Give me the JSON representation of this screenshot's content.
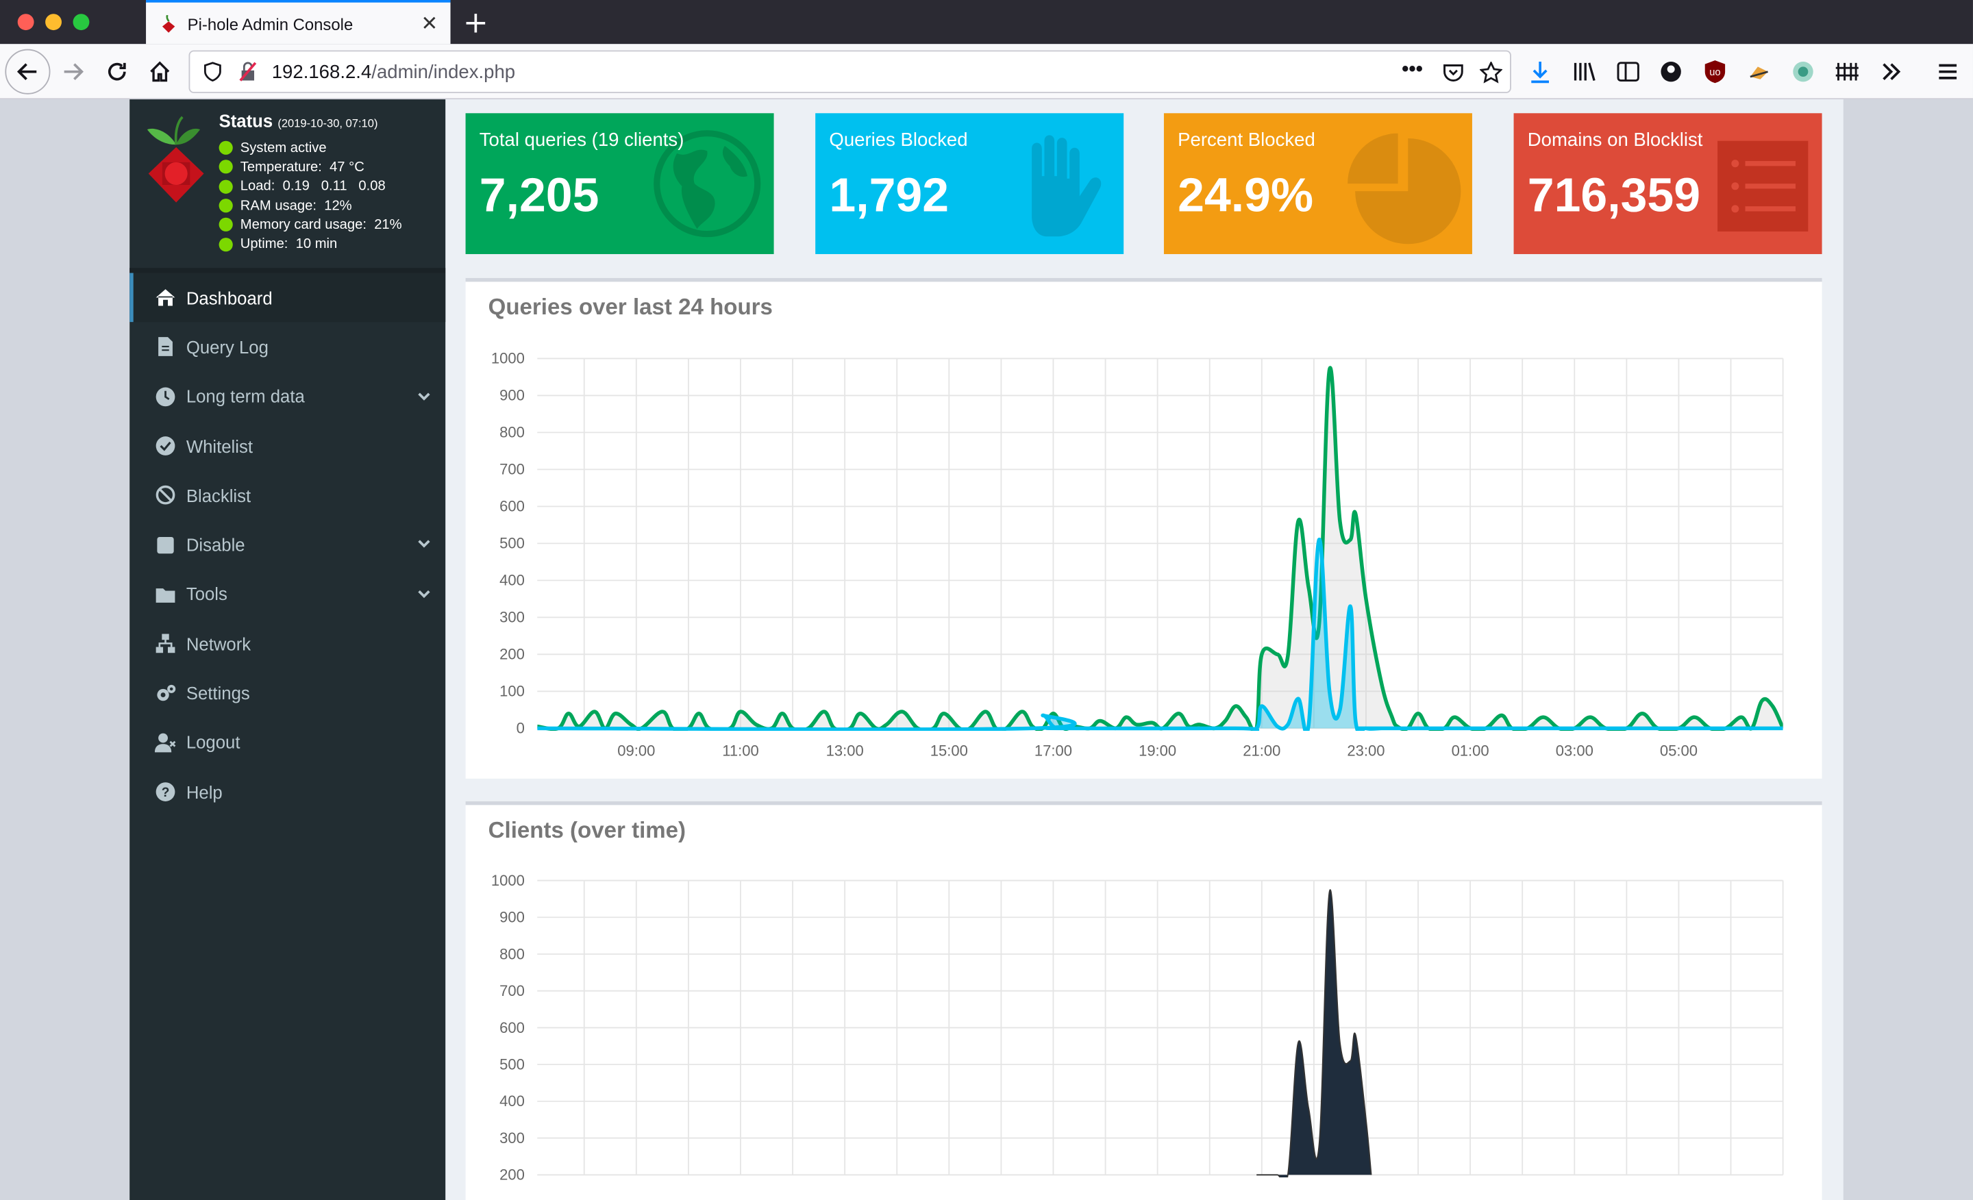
{
  "browser": {
    "tab_title": "Pi-hole Admin Console",
    "url_host": "192.168.2.4",
    "url_path": "/admin/index.php"
  },
  "status": {
    "title": "Status",
    "timestamp": "(2019-10-30, 07:10)",
    "lines": [
      "System active",
      "Temperature:  47 °C",
      "Load:  0.19   0.11   0.08",
      "RAM usage:  12%",
      "Memory card usage:  21%",
      "Uptime:  10 min"
    ]
  },
  "menu": [
    {
      "label": "Dashboard",
      "icon": "home-icon",
      "active": true
    },
    {
      "label": "Query Log",
      "icon": "file-icon"
    },
    {
      "label": "Long term data",
      "icon": "clock-icon",
      "caret": true
    },
    {
      "label": "Whitelist",
      "icon": "check-circle-icon"
    },
    {
      "label": "Blacklist",
      "icon": "ban-icon"
    },
    {
      "label": "Disable",
      "icon": "stop-icon",
      "caret": true
    },
    {
      "label": "Tools",
      "icon": "folder-icon",
      "caret": true
    },
    {
      "label": "Network",
      "icon": "network-icon"
    },
    {
      "label": "Settings",
      "icon": "cogs-icon"
    },
    {
      "label": "Logout",
      "icon": "user-times-icon"
    },
    {
      "label": "Help",
      "icon": "question-circle-icon"
    }
  ],
  "stats": [
    {
      "label": "Total queries (19 clients)",
      "value": "7,205",
      "color": "#00a65a",
      "icon": "globe-icon"
    },
    {
      "label": "Queries Blocked",
      "value": "1,792",
      "color": "#00c0ef",
      "icon": "hand-icon"
    },
    {
      "label": "Percent Blocked",
      "value": "24.9%",
      "color": "#f39c12",
      "icon": "pie-chart-icon"
    },
    {
      "label": "Domains on Blocklist",
      "value": "716,359",
      "color": "#dd4b39",
      "icon": "list-icon"
    }
  ],
  "chart_data": [
    {
      "type": "area",
      "title": "Queries over last 24 hours",
      "ylim": [
        0,
        1000
      ],
      "yticks": [
        0,
        100,
        200,
        300,
        400,
        500,
        600,
        700,
        800,
        900,
        1000
      ],
      "xticks": [
        "09:00",
        "11:00",
        "13:00",
        "15:00",
        "17:00",
        "19:00",
        "21:00",
        "23:00",
        "01:00",
        "03:00",
        "05:00"
      ],
      "x_range": [
        7.1,
        31.0
      ],
      "series": [
        {
          "color": "#00a65a",
          "x": [
            7.1,
            7.5,
            7.7,
            7.9,
            8.2,
            8.4,
            8.6,
            8.9,
            9.1,
            9.5,
            9.7,
            10.0,
            10.2,
            10.4,
            10.8,
            11.0,
            11.3,
            11.6,
            11.8,
            12.0,
            12.3,
            12.6,
            12.8,
            13.1,
            13.3,
            13.6,
            13.8,
            14.1,
            14.4,
            14.7,
            14.9,
            15.2,
            15.4,
            15.7,
            15.9,
            16.1,
            16.4,
            16.6,
            16.8,
            17.0,
            17.2,
            17.4,
            17.7,
            17.9,
            18.2,
            18.4,
            18.6,
            18.9,
            19.1,
            19.4,
            19.6,
            19.8,
            20.1,
            20.3,
            20.5,
            20.7,
            20.9,
            21.0,
            21.3,
            21.5,
            21.7,
            21.9,
            22.1,
            22.3,
            22.5,
            22.7,
            22.8,
            23.0,
            23.3,
            23.5,
            23.6,
            23.8,
            24.0,
            24.2,
            24.5,
            24.7,
            25.0,
            25.3,
            25.6,
            25.8,
            26.1,
            26.4,
            26.7,
            27.0,
            27.3,
            27.6,
            28.0,
            28.3,
            28.6,
            29.0,
            29.3,
            29.6,
            29.9,
            30.2,
            30.4,
            30.6,
            30.8,
            31.0
          ],
          "y": [
            5,
            0,
            40,
            5,
            45,
            0,
            40,
            10,
            0,
            45,
            0,
            0,
            40,
            0,
            0,
            45,
            10,
            0,
            40,
            0,
            0,
            45,
            0,
            0,
            40,
            0,
            10,
            45,
            0,
            0,
            40,
            0,
            0,
            45,
            0,
            0,
            45,
            5,
            0,
            40,
            0,
            5,
            0,
            20,
            0,
            30,
            10,
            15,
            0,
            40,
            5,
            10,
            0,
            20,
            60,
            30,
            0,
            200,
            200,
            195,
            560,
            380,
            280,
            970,
            560,
            510,
            580,
            350,
            120,
            30,
            5,
            0,
            40,
            0,
            0,
            30,
            0,
            0,
            35,
            0,
            0,
            30,
            0,
            0,
            30,
            0,
            0,
            40,
            0,
            0,
            30,
            0,
            0,
            30,
            0,
            75,
            60,
            0
          ]
        },
        {
          "color": "#00c0ef",
          "x": [
            7.1,
            16.6,
            16.8,
            17.0,
            17.2,
            20.5,
            20.9,
            21.0,
            21.3,
            21.5,
            21.7,
            21.9,
            22.1,
            22.3,
            22.5,
            22.7,
            22.8,
            23.0,
            23.3,
            23.5,
            31.0
          ],
          "y": [
            0,
            0,
            35,
            5,
            0,
            0,
            0,
            60,
            5,
            10,
            80,
            10,
            510,
            100,
            50,
            330,
            20,
            0,
            0,
            0,
            0
          ]
        }
      ]
    },
    {
      "type": "area",
      "title": "Clients (over time)",
      "ylim": [
        200,
        1000
      ],
      "yticks": [
        200,
        300,
        400,
        500,
        600,
        700,
        800,
        900,
        1000
      ],
      "xticks": [],
      "x_range": [
        7.1,
        31.0
      ],
      "series": [
        {
          "color": "#1f2d3d",
          "x": [
            20.9,
            21.0,
            21.3,
            21.5,
            21.7,
            21.9,
            22.1,
            22.3,
            22.5,
            22.7,
            22.8,
            23.0,
            23.1
          ],
          "y": [
            0,
            200,
            200,
            195,
            560,
            380,
            280,
            970,
            560,
            510,
            580,
            350,
            120
          ]
        }
      ]
    }
  ]
}
